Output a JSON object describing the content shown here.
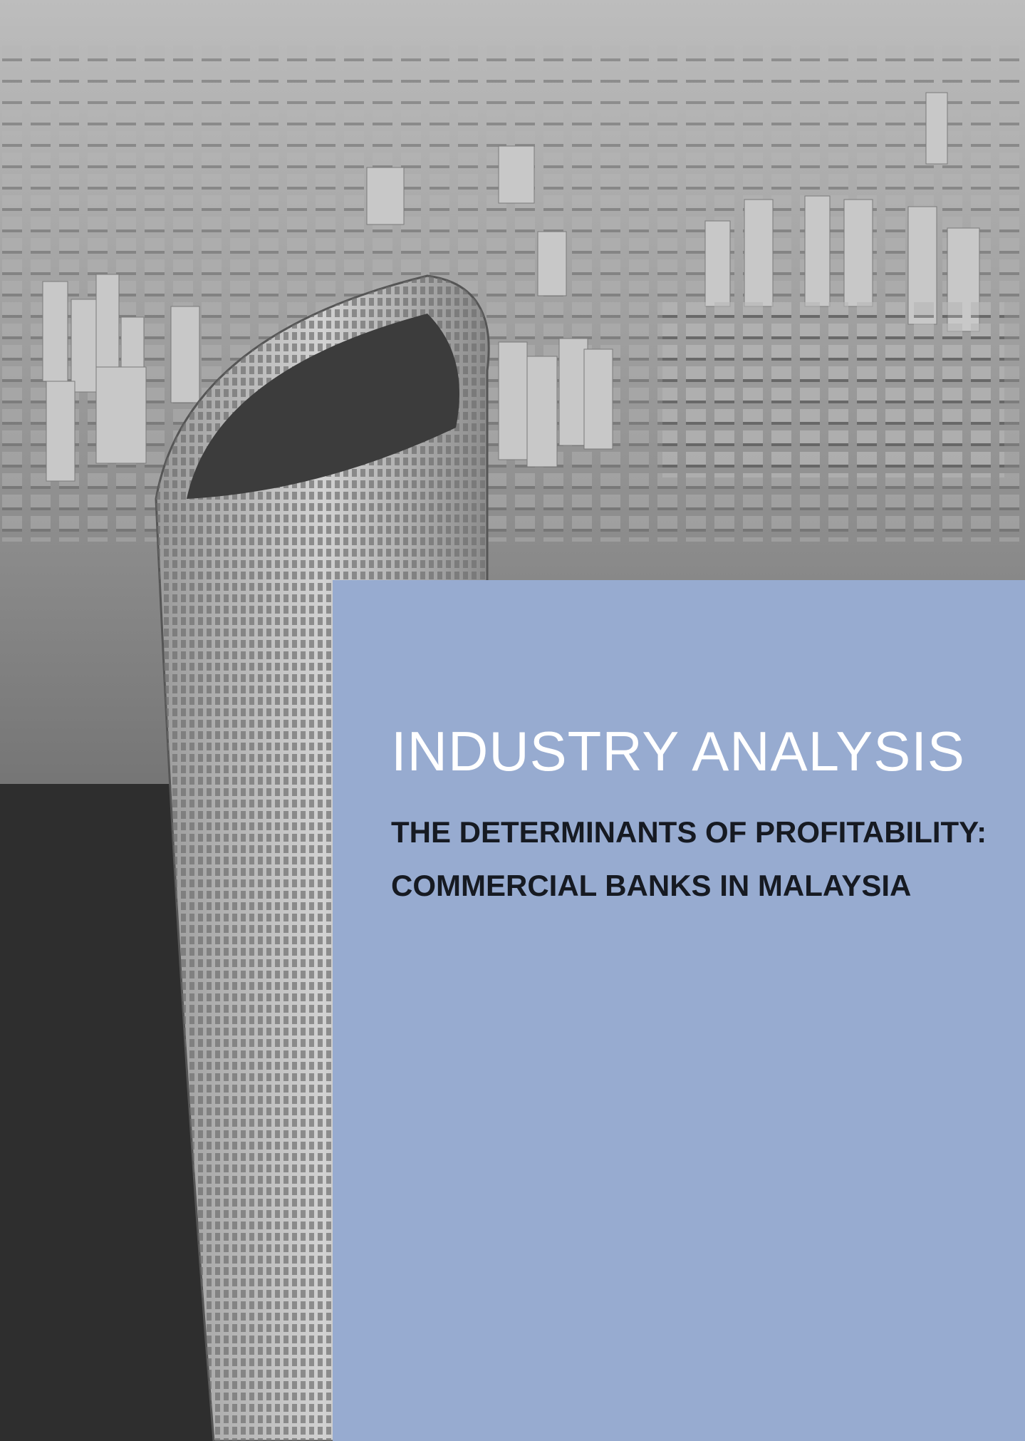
{
  "cover": {
    "title": "INDUSTRY ANALYSIS",
    "subtitle_lines": [
      "THE DETERMINANTS OF PROFITABILITY:",
      "COMMERCIAL BANKS IN MALAYSIA"
    ]
  }
}
